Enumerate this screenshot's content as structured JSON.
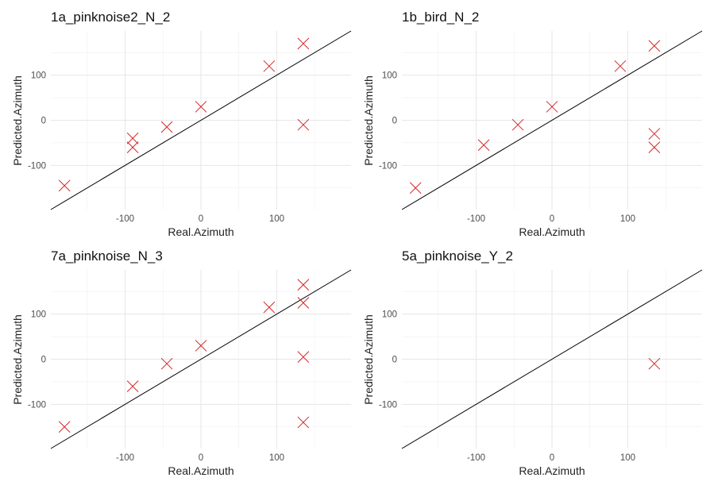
{
  "chart_data": [
    {
      "type": "scatter",
      "title": "1a_pinknoise2_N_2",
      "xlabel": "Real.Azimuth",
      "ylabel": "Predicted.Azimuth",
      "xlim": [
        -198,
        198
      ],
      "ylim": [
        -198,
        198
      ],
      "xticks": [
        -100,
        0,
        100
      ],
      "yticks": [
        -100,
        0,
        100
      ],
      "reference_line": "y = x",
      "marker": "x",
      "marker_color": "#d62728",
      "points": [
        {
          "x": -180,
          "y": -145
        },
        {
          "x": -90,
          "y": -40
        },
        {
          "x": -90,
          "y": -60
        },
        {
          "x": -45,
          "y": -15
        },
        {
          "x": 0,
          "y": 30
        },
        {
          "x": 90,
          "y": 120
        },
        {
          "x": 135,
          "y": 170
        },
        {
          "x": 135,
          "y": -10
        }
      ]
    },
    {
      "type": "scatter",
      "title": "1b_bird_N_2",
      "xlabel": "Real.Azimuth",
      "ylabel": "Predicted.Azimuth",
      "xlim": [
        -198,
        198
      ],
      "ylim": [
        -198,
        198
      ],
      "xticks": [
        -100,
        0,
        100
      ],
      "yticks": [
        -100,
        0,
        100
      ],
      "reference_line": "y = x",
      "marker": "x",
      "marker_color": "#d62728",
      "points": [
        {
          "x": -180,
          "y": -150
        },
        {
          "x": -90,
          "y": -55
        },
        {
          "x": -45,
          "y": -10
        },
        {
          "x": 0,
          "y": 30
        },
        {
          "x": 90,
          "y": 120
        },
        {
          "x": 135,
          "y": 165
        },
        {
          "x": 135,
          "y": -30
        },
        {
          "x": 135,
          "y": -60
        }
      ]
    },
    {
      "type": "scatter",
      "title": "7a_pinknoise_N_3",
      "xlabel": "Real.Azimuth",
      "ylabel": "Predicted.Azimuth",
      "xlim": [
        -198,
        198
      ],
      "ylim": [
        -198,
        198
      ],
      "xticks": [
        -100,
        0,
        100
      ],
      "yticks": [
        -100,
        0,
        100
      ],
      "reference_line": "y = x",
      "marker": "x",
      "marker_color": "#d62728",
      "points": [
        {
          "x": -180,
          "y": -150
        },
        {
          "x": -90,
          "y": -60
        },
        {
          "x": -45,
          "y": -10
        },
        {
          "x": 0,
          "y": 30
        },
        {
          "x": 90,
          "y": 115
        },
        {
          "x": 135,
          "y": 165
        },
        {
          "x": 135,
          "y": 125
        },
        {
          "x": 135,
          "y": 5
        },
        {
          "x": 135,
          "y": -140
        }
      ]
    },
    {
      "type": "scatter",
      "title": "5a_pinknoise_Y_2",
      "xlabel": "Real.Azimuth",
      "ylabel": "Predicted.Azimuth",
      "xlim": [
        -198,
        198
      ],
      "ylim": [
        -198,
        198
      ],
      "xticks": [
        -100,
        0,
        100
      ],
      "yticks": [
        -100,
        0,
        100
      ],
      "reference_line": "y = x",
      "marker": "x",
      "marker_color": "#d62728",
      "points": [
        {
          "x": 135,
          "y": -10
        }
      ]
    }
  ]
}
